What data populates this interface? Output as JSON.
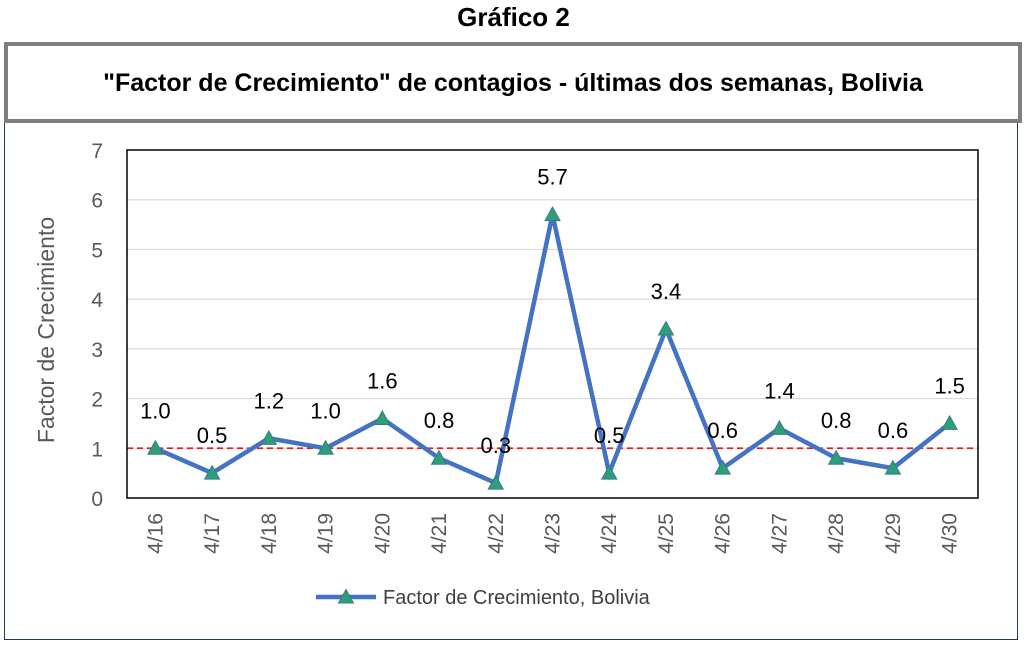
{
  "heading": "Gráfico 2",
  "chart_data": {
    "type": "line",
    "title": "\"Factor de Crecimiento\" de contagios - últimas dos semanas, Bolivia",
    "ylabel": "Factor de Crecimiento",
    "xlabel": "",
    "categories": [
      "4/16",
      "4/17",
      "4/18",
      "4/19",
      "4/20",
      "4/21",
      "4/22",
      "4/23",
      "4/24",
      "4/25",
      "4/26",
      "4/27",
      "4/28",
      "4/29",
      "4/30"
    ],
    "series": [
      {
        "name": "Factor de Crecimiento, Bolivia",
        "values": [
          1.0,
          0.5,
          1.2,
          1.0,
          1.6,
          0.8,
          0.3,
          5.7,
          0.5,
          3.4,
          0.6,
          1.4,
          0.8,
          0.6,
          1.5
        ],
        "labels": [
          "1.0",
          "0.5",
          "1.2",
          "1.0",
          "1.6",
          "0.8",
          "0.3",
          "5.7",
          "0.5",
          "3.4",
          "0.6",
          "1.4",
          "0.8",
          "0.6",
          "1.5"
        ]
      }
    ],
    "ylim": [
      0,
      7
    ],
    "yticks": [
      "0",
      "1",
      "2",
      "3",
      "4",
      "5",
      "6",
      "7"
    ],
    "reference_line": 1,
    "grid": true,
    "legend_position": "bottom",
    "colors": {
      "line": "#4472c4",
      "marker_fill": "#2e9e78",
      "marker_edge": "#3a7a8a",
      "reference": "#e02020",
      "grid": "#d9d9d9"
    }
  }
}
